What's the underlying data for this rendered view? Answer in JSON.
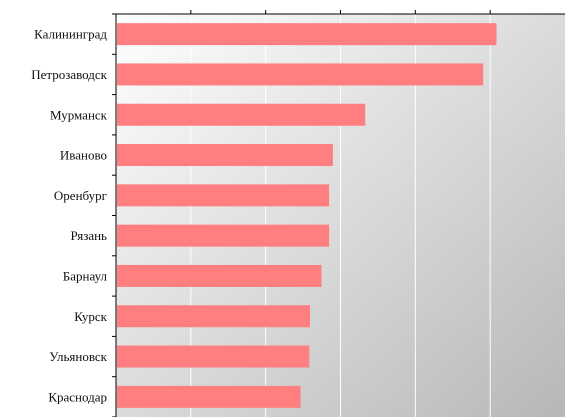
{
  "chart_data": {
    "type": "bar",
    "orientation": "horizontal",
    "categories": [
      "Калининград",
      "Петрозаводск",
      "Мурманск",
      "Иваново",
      "Оренбург",
      "Рязань",
      "Барнаул",
      "Курск",
      "Ульяновск",
      "Краснодар"
    ],
    "values": [
      100,
      96.5,
      65.5,
      57,
      56,
      56,
      54,
      51,
      50.8,
      48.5
    ],
    "xlim": [
      0,
      118
    ],
    "title": "",
    "xlabel": "",
    "ylabel": "",
    "grid": "vertical lines",
    "legend": "none",
    "bar_color": "#ff7f80",
    "axis_color": "#000000",
    "grid_color": "#ffffff",
    "background_gradient": [
      "#ffffff",
      "#b7b7b7"
    ]
  }
}
